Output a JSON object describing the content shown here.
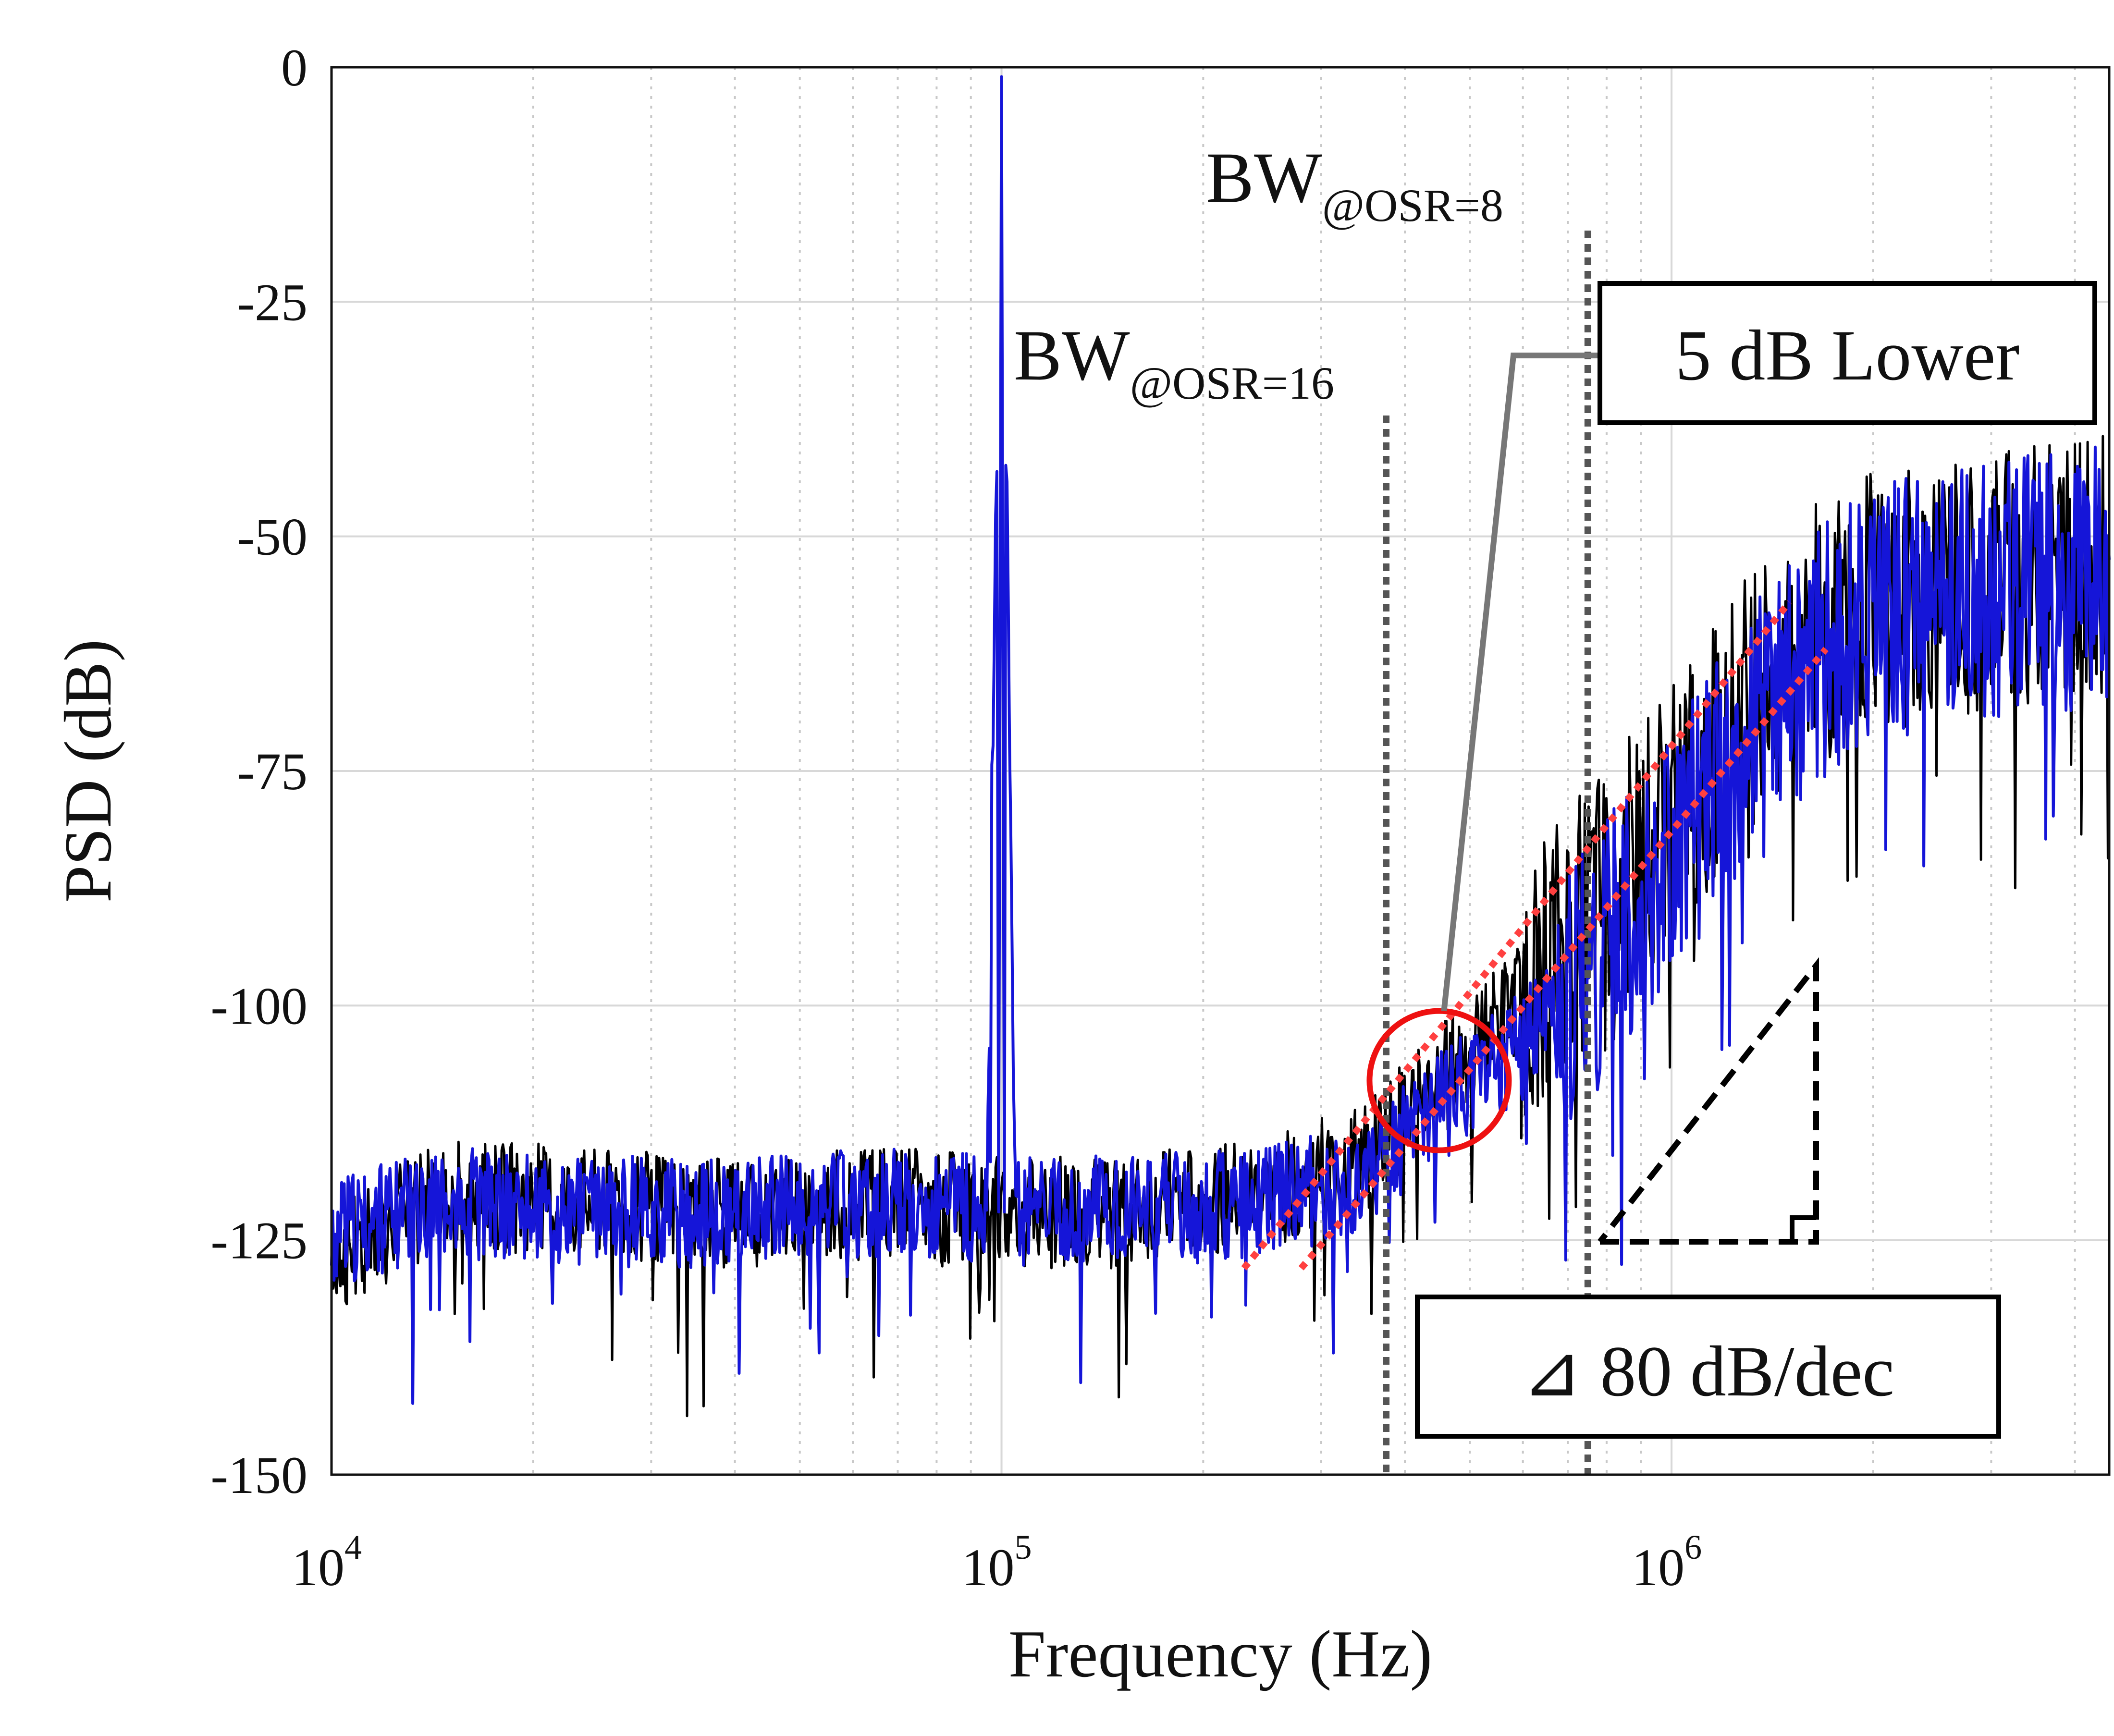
{
  "chart_data": {
    "type": "line",
    "title": "",
    "xlabel": "Frequency (Hz)",
    "ylabel": "PSD (dB)",
    "xscale": "log",
    "xlim": [
      10000,
      4500000
    ],
    "ylim": [
      -150,
      0
    ],
    "x_ticks": [
      {
        "value": 10000,
        "base": "10",
        "exp": "4"
      },
      {
        "value": 100000,
        "base": "10",
        "exp": "5"
      },
      {
        "value": 1000000,
        "base": "10",
        "exp": "6"
      }
    ],
    "y_ticks": [
      {
        "value": 0,
        "label": "0"
      },
      {
        "value": -25,
        "label": "-25"
      },
      {
        "value": -50,
        "label": "-50"
      },
      {
        "value": -75,
        "label": "-75"
      },
      {
        "value": -100,
        "label": "-100"
      },
      {
        "value": -125,
        "label": "-125"
      },
      {
        "value": -150,
        "label": "-150"
      }
    ],
    "grid": true,
    "series": [
      {
        "name": "black trace",
        "color": "#000000",
        "x": [
          10000,
          15000,
          25000,
          40000,
          70000,
          95000,
          100000,
          105000,
          150000,
          250000,
          350000,
          450000,
          600000,
          800000,
          1000000,
          1500000,
          2000000,
          3000000,
          4500000
        ],
        "y": [
          -127,
          -120,
          -121,
          -122,
          -121,
          -122,
          -122,
          -122,
          -122,
          -120,
          -116,
          -108,
          -99,
          -88,
          -79,
          -62,
          -57,
          -55,
          -53
        ]
      },
      {
        "name": "blue trace",
        "color": "#1515d8",
        "x": [
          10000,
          15000,
          25000,
          40000,
          70000,
          95000,
          100000,
          105000,
          150000,
          250000,
          350000,
          450000,
          600000,
          800000,
          1000000,
          1500000,
          2000000,
          3000000,
          4500000
        ],
        "y": [
          -124,
          -121,
          -122,
          -122,
          -121,
          -122,
          -1,
          -122,
          -122,
          -121,
          -118,
          -111,
          -104,
          -94,
          -84,
          -65,
          -58,
          -56,
          -54
        ]
      }
    ],
    "vlines": [
      {
        "label_main": "BW",
        "label_sub": "@OSR=16",
        "x": 375000
      },
      {
        "label_main": "BW",
        "label_sub": "@OSR=8",
        "x": 750000
      }
    ],
    "slope_lines": [
      {
        "x": [
          230000,
          1500000
        ],
        "y": [
          -128,
          -57
        ],
        "color": "#ff4040"
      },
      {
        "x": [
          280000,
          1700000
        ],
        "y": [
          -128,
          -62
        ],
        "color": "#ff4040"
      }
    ],
    "circle": {
      "x": 450000,
      "y": -108,
      "color": "#ee1111"
    },
    "annotations": [
      {
        "id": "lower",
        "text": "5 dB Lower"
      },
      {
        "id": "slope",
        "text": "⊿ 80 dB/dec"
      }
    ]
  }
}
